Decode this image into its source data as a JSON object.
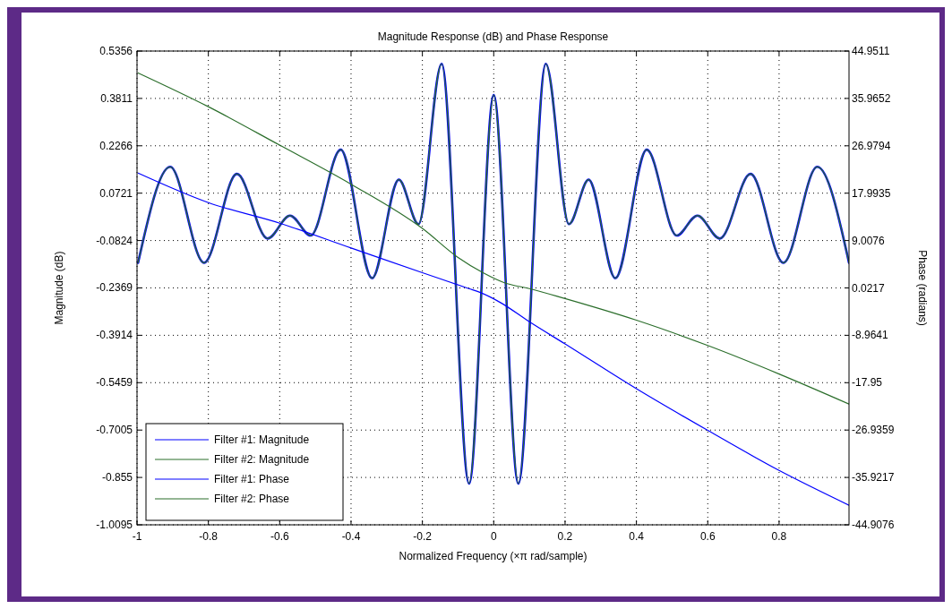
{
  "chart_data": {
    "type": "line",
    "title": "Magnitude Response (dB) and Phase Response",
    "xlabel": "Normalized Frequency (×π rad/sample)",
    "ylabel": "Magnitude (dB)",
    "y2label": "Phase (radians)",
    "xlim": [
      -1,
      0.996
    ],
    "xticks": [
      -1,
      -0.8,
      -0.6,
      -0.4,
      -0.2,
      0,
      0.2,
      0.4,
      0.6,
      0.8
    ],
    "ylim": [
      -1.0095,
      0.5356
    ],
    "yticks": [
      0.5356,
      0.3811,
      0.2266,
      0.0721,
      -0.0824,
      -0.2369,
      -0.3914,
      -0.5459,
      -0.7005,
      -0.855,
      -1.0095
    ],
    "y2lim": [
      -44.9076,
      44.9511
    ],
    "y2ticks": [
      44.9511,
      35.9652,
      26.9794,
      17.9935,
      9.0076,
      0.0217,
      -8.9641,
      -17.95,
      -26.9359,
      -35.9217,
      -44.9076
    ],
    "grid": true,
    "legend": "bottom left",
    "series": [
      {
        "name": "Filter #1: Magnitude",
        "color": "#0000ff",
        "x": [
          -0.997,
          -0.907,
          -0.812,
          -0.72,
          -0.634,
          -0.571,
          -0.513,
          -0.429,
          -0.341,
          -0.266,
          -0.211,
          -0.146,
          -0.069,
          0,
          0.069,
          0.146,
          0.211,
          0.266,
          0.341,
          0.429,
          0.513,
          0.571,
          0.634,
          0.72,
          0.812,
          0.907,
          0.996
        ],
        "values": [
          -0.155,
          0.158,
          -0.155,
          0.135,
          -0.076,
          -0.001,
          -0.066,
          0.214,
          -0.205,
          0.116,
          -0.029,
          0.494,
          -0.875,
          0.392,
          -0.875,
          0.494,
          -0.029,
          0.116,
          -0.205,
          0.214,
          -0.066,
          -0.001,
          -0.076,
          0.135,
          -0.155,
          0.158,
          -0.155
        ]
      },
      {
        "name": "Filter #2: Magnitude",
        "color": "#2b6e2b",
        "x": [
          -0.997,
          -0.907,
          -0.812,
          -0.72,
          -0.634,
          -0.571,
          -0.513,
          -0.429,
          -0.341,
          -0.266,
          -0.211,
          -0.146,
          -0.069,
          0,
          0.069,
          0.146,
          0.211,
          0.266,
          0.341,
          0.429,
          0.513,
          0.571,
          0.634,
          0.72,
          0.812,
          0.907,
          0.996
        ],
        "values": [
          -0.155,
          0.158,
          -0.155,
          0.135,
          -0.076,
          -0.001,
          -0.066,
          0.214,
          -0.205,
          0.116,
          -0.029,
          0.494,
          -0.875,
          0.392,
          -0.875,
          0.494,
          -0.029,
          0.116,
          -0.205,
          0.214,
          -0.066,
          -0.001,
          -0.076,
          0.135,
          -0.155,
          0.158,
          -0.155
        ]
      },
      {
        "name": "Filter #1: Phase",
        "color": "#0000ff",
        "axis": "y2",
        "x": [
          -0.997,
          -0.8,
          -0.6,
          -0.4,
          -0.2,
          -0.07,
          -0.036,
          0.02,
          0.1,
          0.2,
          0.4,
          0.6,
          0.8,
          0.996
        ],
        "values": [
          21.8,
          16.2,
          12.3,
          7.6,
          2.9,
          -0.1,
          -0.9,
          -2.8,
          -6.4,
          -10.6,
          -19.1,
          -27.0,
          -34.6,
          -41.2
        ]
      },
      {
        "name": "Filter #2: Phase",
        "color": "#2b6e2b",
        "axis": "y2",
        "x": [
          -0.997,
          -0.8,
          -0.6,
          -0.4,
          -0.2,
          -0.1,
          -0.03,
          0.03,
          0.1,
          0.2,
          0.4,
          0.6,
          0.8,
          0.996
        ],
        "values": [
          40.8,
          34.4,
          27.1,
          19.7,
          11.3,
          5.8,
          2.9,
          1.0,
          -0.1,
          -2.0,
          -6.1,
          -10.9,
          -16.3,
          -22.0
        ]
      }
    ]
  }
}
